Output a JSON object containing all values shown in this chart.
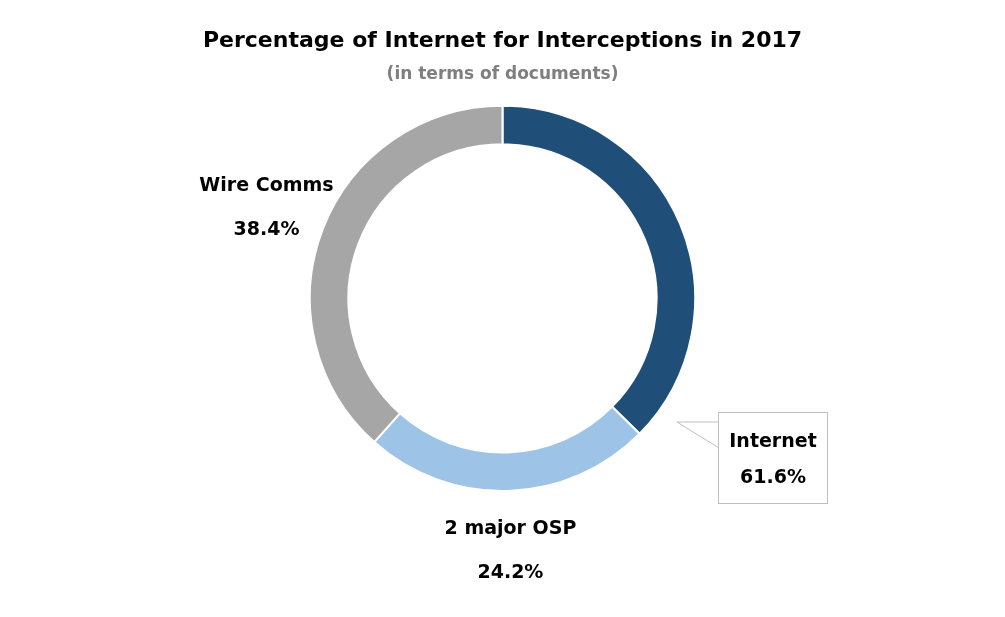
{
  "chart_data": {
    "type": "donut",
    "title": "Percentage of Internet for Interceptions in 2017",
    "subtitle": "(in terms of documents)",
    "categories": [
      null,
      "2 major OSP",
      "Wire Comms"
    ],
    "values": [
      37.4,
      24.2,
      38.4
    ],
    "colors": [
      "#1f4e79",
      "#9dc3e6",
      "#a6a6a6"
    ],
    "value_labels": [
      null,
      "24.2%",
      "38.4%"
    ],
    "annotations": [
      "Internet\n61.6%"
    ],
    "legend": false
  }
}
